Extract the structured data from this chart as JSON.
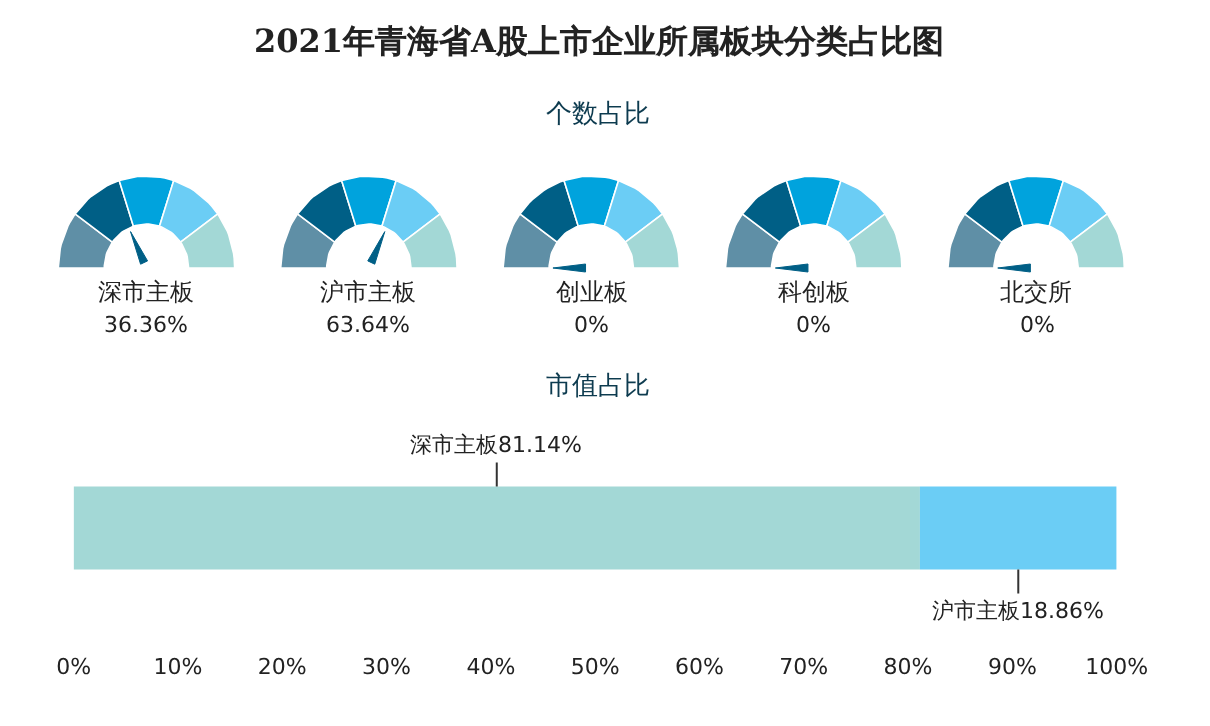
{
  "chart_data": [
    {
      "type": "other",
      "title": "2021年青海省A股上市企业所属板块分类占比图",
      "subtitle": "个数占比",
      "categories": [
        "深市主板"
      ],
      "values": [
        36.36
      ],
      "value_labels": [
        "36.36%"
      ],
      "color": "#005f86"
    },
    {
      "type": "other",
      "categories": [
        "沪市主板"
      ],
      "values": [
        63.64
      ],
      "value_labels": [
        "63.64%"
      ],
      "color": "#005f86"
    },
    {
      "type": "other",
      "categories": [
        "创业板"
      ],
      "values": [
        0
      ],
      "value_labels": [
        "0%"
      ],
      "color": "#005f86"
    },
    {
      "type": "other",
      "categories": [
        "科创板"
      ],
      "values": [
        0
      ],
      "value_labels": [
        "0%"
      ],
      "color": "#005f86"
    },
    {
      "type": "other",
      "categories": [
        "北交所"
      ],
      "values": [
        0
      ],
      "value_labels": [
        "0%"
      ],
      "color": "#005f86"
    },
    {
      "type": "bar",
      "title": "市值占比",
      "orientation": "horizontal",
      "stacked": true,
      "categories": [
        null
      ],
      "series": [
        {
          "color": "#a3d8d6",
          "values": [
            81.14
          ],
          "value_labels": [
            "深市主板81.14%"
          ]
        },
        {
          "color": "#6bcdf5",
          "values": [
            18.86
          ],
          "value_labels": [
            "沪市主板18.86%"
          ]
        }
      ],
      "xlim": [
        0,
        100
      ],
      "xticks": [
        {
          "value": 0,
          "label": "0%"
        },
        {
          "value": 10,
          "label": "10%"
        },
        {
          "value": 20,
          "label": "20%"
        },
        {
          "value": 30,
          "label": "30%"
        },
        {
          "value": 40,
          "label": "40%"
        },
        {
          "value": 50,
          "label": "50%"
        },
        {
          "value": 60,
          "label": "60%"
        },
        {
          "value": 70,
          "label": "70%"
        },
        {
          "value": 80,
          "label": "80%"
        },
        {
          "value": 90,
          "label": "90%"
        },
        {
          "value": 100,
          "label": "100%"
        }
      ]
    }
  ]
}
